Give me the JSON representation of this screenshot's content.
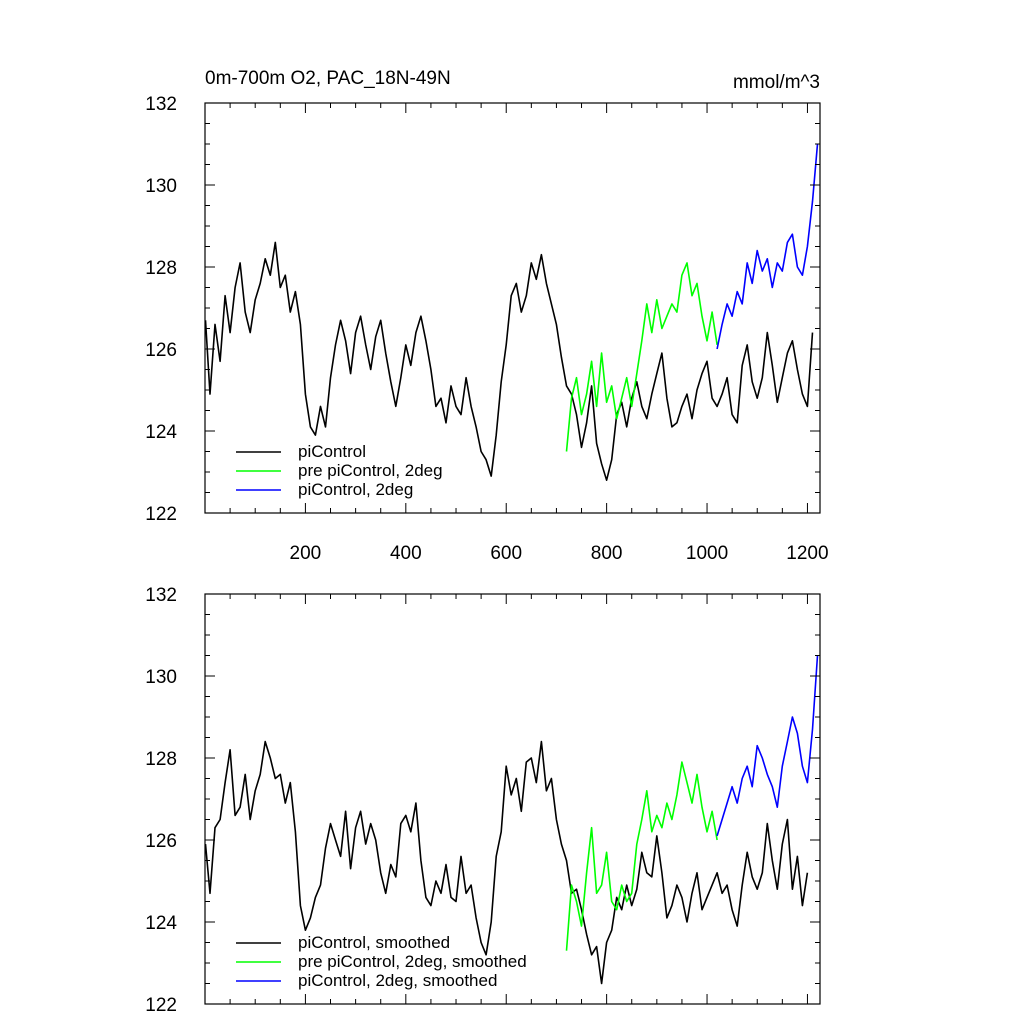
{
  "chart_data": [
    {
      "type": "line",
      "title": "0m-700m O2, PAC_18N-49N",
      "units_label": "mmol/m^3",
      "xlim": [
        0,
        1225
      ],
      "ylim": [
        122,
        132
      ],
      "x_ticks": [
        200,
        400,
        600,
        800,
        1000,
        1200
      ],
      "x_tick_labels": [
        "200",
        "400",
        "600",
        "800",
        "1000",
        "1200"
      ],
      "y_ticks": [
        122,
        124,
        126,
        128,
        130,
        132
      ],
      "y_tick_labels": [
        "122",
        "124",
        "126",
        "128",
        "130",
        "132"
      ],
      "grid": false,
      "legend_position": "bottom-left",
      "series": [
        {
          "name": "piControl",
          "color": "#000000",
          "x": [
            1,
            10,
            20,
            30,
            40,
            50,
            60,
            70,
            80,
            90,
            100,
            110,
            120,
            130,
            140,
            150,
            160,
            170,
            180,
            190,
            200,
            210,
            220,
            230,
            240,
            250,
            260,
            270,
            280,
            290,
            300,
            310,
            320,
            330,
            340,
            350,
            360,
            370,
            380,
            390,
            400,
            410,
            420,
            430,
            440,
            450,
            460,
            470,
            480,
            490,
            500,
            510,
            520,
            530,
            540,
            550,
            560,
            570,
            580,
            590,
            600,
            610,
            620,
            630,
            640,
            650,
            660,
            670,
            680,
            690,
            700,
            710,
            720,
            730,
            740,
            750,
            760,
            770,
            780,
            790,
            800,
            810,
            820,
            830,
            840,
            850,
            860,
            870,
            880,
            890,
            900,
            910,
            920,
            930,
            940,
            950,
            960,
            970,
            980,
            990,
            1000,
            1010,
            1020,
            1030,
            1040,
            1050,
            1060,
            1070,
            1080,
            1090,
            1100,
            1110,
            1120,
            1130,
            1140,
            1150,
            1160,
            1170,
            1180,
            1190,
            1200,
            1210
          ],
          "values": [
            126.7,
            124.9,
            126.6,
            125.7,
            127.3,
            126.4,
            127.5,
            128.1,
            126.9,
            126.4,
            127.2,
            127.6,
            128.2,
            127.8,
            128.6,
            127.5,
            127.8,
            126.9,
            127.4,
            126.6,
            124.9,
            124.1,
            123.9,
            124.6,
            124.1,
            125.3,
            126.1,
            126.7,
            126.2,
            125.4,
            126.4,
            126.8,
            126.1,
            125.5,
            126.3,
            126.7,
            125.9,
            125.2,
            124.6,
            125.3,
            126.1,
            125.6,
            126.4,
            126.8,
            126.2,
            125.5,
            124.6,
            124.8,
            124.2,
            125.1,
            124.6,
            124.4,
            125.3,
            124.6,
            124.1,
            123.5,
            123.3,
            122.9,
            123.9,
            125.2,
            126.1,
            127.3,
            127.6,
            126.9,
            127.3,
            128.1,
            127.7,
            128.3,
            127.6,
            127.1,
            126.6,
            125.8,
            125.1,
            124.9,
            124.4,
            123.6,
            124.2,
            125.1,
            123.7,
            123.2,
            122.8,
            123.3,
            124.4,
            124.7,
            124.1,
            124.8,
            125.2,
            124.6,
            124.3,
            124.9,
            125.4,
            125.9,
            124.8,
            124.1,
            124.2,
            124.6,
            124.9,
            124.3,
            125.0,
            125.4,
            125.7,
            124.8,
            124.6,
            124.9,
            125.3,
            124.4,
            124.2,
            125.6,
            126.1,
            125.2,
            124.8,
            125.3,
            126.4,
            125.6,
            124.7,
            125.3,
            125.9,
            126.2,
            125.5,
            124.9,
            124.6,
            126.4
          ]
        },
        {
          "name": "pre piControl, 2deg",
          "color": "#00ff00",
          "x": [
            720,
            730,
            740,
            750,
            760,
            770,
            780,
            790,
            800,
            810,
            820,
            830,
            840,
            850,
            860,
            870,
            880,
            890,
            900,
            910,
            920,
            930,
            940,
            950,
            960,
            970,
            980,
            990,
            1000,
            1010,
            1020
          ],
          "values": [
            123.5,
            124.8,
            125.3,
            124.4,
            124.9,
            125.7,
            124.6,
            125.9,
            124.7,
            125.1,
            124.3,
            124.8,
            125.3,
            124.6,
            125.4,
            126.2,
            127.1,
            126.4,
            127.2,
            126.5,
            126.8,
            127.1,
            126.9,
            127.8,
            128.1,
            127.3,
            127.6,
            126.8,
            126.2,
            126.9,
            126.1
          ]
        },
        {
          "name": "piControl, 2deg",
          "color": "#0000ff",
          "x": [
            1020,
            1030,
            1040,
            1050,
            1060,
            1070,
            1080,
            1090,
            1100,
            1110,
            1120,
            1130,
            1140,
            1150,
            1160,
            1170,
            1180,
            1190,
            1200,
            1210,
            1220
          ],
          "values": [
            126.0,
            126.6,
            127.1,
            126.8,
            127.4,
            127.1,
            128.1,
            127.6,
            128.4,
            127.9,
            128.2,
            127.5,
            128.1,
            127.9,
            128.6,
            128.8,
            128.0,
            127.8,
            128.5,
            129.6,
            131.0
          ]
        }
      ]
    },
    {
      "type": "line",
      "xlim": [
        0,
        1225
      ],
      "ylim": [
        122,
        132
      ],
      "x_ticks": [
        200,
        400,
        600,
        800,
        1000,
        1200
      ],
      "y_ticks": [
        122,
        124,
        126,
        128,
        130,
        132
      ],
      "y_tick_labels": [
        "122",
        "124",
        "126",
        "128",
        "130",
        "132"
      ],
      "grid": false,
      "legend_position": "bottom-left",
      "series": [
        {
          "name": "piControl, smoothed",
          "color": "#000000",
          "x": [
            1,
            10,
            20,
            30,
            40,
            50,
            60,
            70,
            80,
            90,
            100,
            110,
            120,
            130,
            140,
            150,
            160,
            170,
            180,
            190,
            200,
            210,
            220,
            230,
            240,
            250,
            260,
            270,
            280,
            290,
            300,
            310,
            320,
            330,
            340,
            350,
            360,
            370,
            380,
            390,
            400,
            410,
            420,
            430,
            440,
            450,
            460,
            470,
            480,
            490,
            500,
            510,
            520,
            530,
            540,
            550,
            560,
            570,
            580,
            590,
            600,
            610,
            620,
            630,
            640,
            650,
            660,
            670,
            680,
            690,
            700,
            710,
            720,
            730,
            740,
            750,
            760,
            770,
            780,
            790,
            800,
            810,
            820,
            830,
            840,
            850,
            860,
            870,
            880,
            890,
            900,
            910,
            920,
            930,
            940,
            950,
            960,
            970,
            980,
            990,
            1000,
            1010,
            1020,
            1030,
            1040,
            1050,
            1060,
            1070,
            1080,
            1090,
            1100,
            1110,
            1120,
            1130,
            1140,
            1150,
            1160,
            1170,
            1180,
            1190,
            1200
          ],
          "values": [
            125.9,
            124.7,
            126.3,
            126.5,
            127.4,
            128.2,
            126.6,
            126.8,
            127.6,
            126.5,
            127.2,
            127.6,
            128.4,
            128.0,
            127.5,
            127.6,
            126.9,
            127.4,
            126.2,
            124.4,
            123.8,
            124.1,
            124.6,
            124.9,
            125.8,
            126.4,
            126.0,
            125.6,
            126.7,
            125.3,
            126.3,
            126.7,
            125.9,
            126.4,
            126.0,
            125.2,
            124.7,
            125.4,
            125.1,
            126.4,
            126.6,
            126.2,
            126.9,
            125.5,
            124.6,
            124.4,
            125.0,
            124.7,
            125.4,
            124.6,
            124.5,
            125.6,
            124.7,
            124.9,
            124.1,
            123.5,
            123.2,
            124.0,
            125.6,
            126.2,
            127.8,
            127.1,
            127.5,
            126.7,
            127.9,
            128.0,
            127.4,
            128.4,
            127.2,
            127.5,
            126.5,
            125.9,
            125.5,
            124.7,
            124.8,
            124.3,
            123.7,
            123.2,
            123.4,
            122.5,
            123.5,
            123.8,
            124.6,
            124.3,
            124.9,
            124.4,
            124.8,
            125.7,
            125.2,
            125.1,
            126.1,
            125.2,
            124.1,
            124.4,
            124.9,
            124.6,
            124.0,
            124.7,
            125.2,
            124.3,
            124.6,
            124.9,
            125.2,
            124.7,
            124.9,
            124.3,
            123.9,
            124.9,
            125.7,
            125.1,
            124.8,
            125.2,
            126.4,
            125.5,
            124.8,
            125.9,
            126.5,
            124.8,
            125.6,
            124.4,
            125.2
          ]
        },
        {
          "name": "pre piControl, 2deg, smoothed",
          "color": "#00ff00",
          "x": [
            720,
            730,
            740,
            750,
            760,
            770,
            780,
            790,
            800,
            810,
            820,
            830,
            840,
            850,
            860,
            870,
            880,
            890,
            900,
            910,
            920,
            930,
            940,
            950,
            960,
            970,
            980,
            990,
            1000,
            1010,
            1020
          ],
          "values": [
            123.3,
            124.9,
            124.5,
            123.9,
            125.2,
            126.3,
            124.7,
            124.9,
            125.7,
            124.5,
            124.3,
            124.9,
            124.5,
            124.7,
            125.9,
            126.5,
            127.2,
            126.2,
            126.6,
            126.3,
            126.9,
            126.5,
            127.1,
            127.9,
            127.4,
            126.9,
            127.6,
            126.8,
            126.2,
            126.7,
            126.0
          ]
        },
        {
          "name": "piControl, 2deg, smoothed",
          "color": "#0000ff",
          "x": [
            1020,
            1030,
            1040,
            1050,
            1060,
            1070,
            1080,
            1090,
            1100,
            1110,
            1120,
            1130,
            1140,
            1150,
            1160,
            1170,
            1180,
            1190,
            1200,
            1210,
            1220
          ],
          "values": [
            126.1,
            126.5,
            126.9,
            127.3,
            126.9,
            127.5,
            127.8,
            127.3,
            128.3,
            128.0,
            127.6,
            127.3,
            126.8,
            127.8,
            128.4,
            129.0,
            128.6,
            127.8,
            127.4,
            128.7,
            130.5
          ]
        }
      ]
    }
  ]
}
